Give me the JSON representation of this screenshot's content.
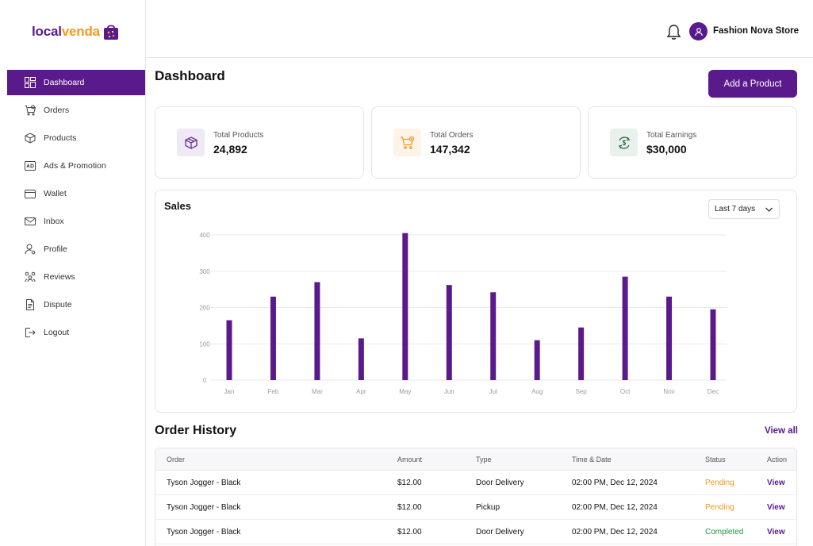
{
  "brand": {
    "part1": "local",
    "part2": "venda"
  },
  "sidebar": {
    "items": [
      {
        "label": "Dashboard",
        "icon": "dashboard-icon",
        "active": true
      },
      {
        "label": "Orders",
        "icon": "cart-icon"
      },
      {
        "label": "Products",
        "icon": "box-icon"
      },
      {
        "label": "Ads & Promotion",
        "icon": "ads-icon"
      },
      {
        "label": "Wallet",
        "icon": "wallet-icon"
      },
      {
        "label": "Inbox",
        "icon": "mail-icon"
      },
      {
        "label": "Profile",
        "icon": "user-icon"
      },
      {
        "label": "Reviews",
        "icon": "reviews-icon"
      },
      {
        "label": "Dispute",
        "icon": "document-icon"
      },
      {
        "label": "Logout",
        "icon": "logout-icon"
      }
    ]
  },
  "header": {
    "store_name": "Fashion Nova Store"
  },
  "main": {
    "title": "Dashboard",
    "add_button": "Add a Product"
  },
  "stats": [
    {
      "label": "Total Products",
      "value": "24,892",
      "icon": "box-icon",
      "color": "#efe9f5"
    },
    {
      "label": "Total Orders",
      "value": "147,342",
      "icon": "cart-icon",
      "color": "#fdf3e6"
    },
    {
      "label": "Total Earnings",
      "value": "$30,000",
      "icon": "money-exchange-icon",
      "color": "#e9f1ec"
    }
  ],
  "sales": {
    "title": "Sales",
    "range": "Last 7 days"
  },
  "chart_data": {
    "type": "bar",
    "title": "Sales",
    "categories": [
      "Jan",
      "Feb",
      "Mar",
      "Apr",
      "May",
      "Jun",
      "Jul",
      "Aug",
      "Sep",
      "Oct",
      "Nov",
      "Dec"
    ],
    "values": [
      165,
      230,
      270,
      115,
      405,
      262,
      242,
      110,
      145,
      285,
      230,
      195
    ],
    "yticks": [
      0,
      100,
      200,
      300,
      400
    ],
    "ylim": [
      0,
      400
    ],
    "grid": true,
    "bar_color": "#5b1a8c"
  },
  "orders": {
    "title": "Order History",
    "view_all": "View all",
    "columns": [
      "Order",
      "Amount",
      "Type",
      "Time & Date",
      "Status",
      "Action"
    ],
    "rows": [
      {
        "order": "Tyson Jogger - Black",
        "amount": "$12.00",
        "type": "Door Delivery",
        "time": "02:00 PM, Dec 12, 2024",
        "status": "Pending",
        "action": "View"
      },
      {
        "order": "Tyson Jogger - Black",
        "amount": "$12.00",
        "type": "Pickup",
        "time": "02:00 PM, Dec 12, 2024",
        "status": "Pending",
        "action": "View"
      },
      {
        "order": "Tyson Jogger - Black",
        "amount": "$12.00",
        "type": "Door Delivery",
        "time": "02:00 PM, Dec 12, 2024",
        "status": "Completed",
        "action": "View"
      }
    ]
  },
  "colors": {
    "accent": "#5b1a8c",
    "orange": "#f09a1e",
    "green": "#1c9a3c"
  }
}
